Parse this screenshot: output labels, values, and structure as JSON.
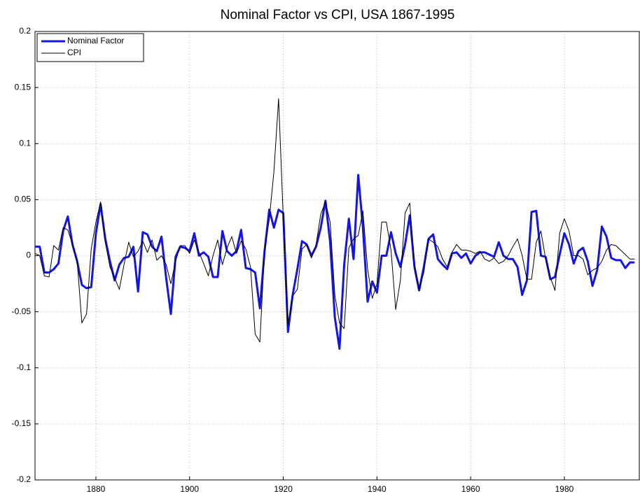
{
  "chart_data": {
    "type": "line",
    "title": "Nominal Factor vs CPI, USA 1867-1995",
    "x": [
      1867,
      1868,
      1869,
      1870,
      1871,
      1872,
      1873,
      1874,
      1875,
      1876,
      1877,
      1878,
      1879,
      1880,
      1881,
      1882,
      1883,
      1884,
      1885,
      1886,
      1887,
      1888,
      1889,
      1890,
      1891,
      1892,
      1893,
      1894,
      1895,
      1896,
      1897,
      1898,
      1899,
      1900,
      1901,
      1902,
      1903,
      1904,
      1905,
      1906,
      1907,
      1908,
      1909,
      1910,
      1911,
      1912,
      1913,
      1914,
      1915,
      1916,
      1917,
      1918,
      1919,
      1920,
      1921,
      1922,
      1923,
      1924,
      1925,
      1926,
      1927,
      1928,
      1929,
      1930,
      1931,
      1932,
      1933,
      1934,
      1935,
      1936,
      1937,
      1938,
      1939,
      1940,
      1941,
      1942,
      1943,
      1944,
      1945,
      1946,
      1947,
      1948,
      1949,
      1950,
      1951,
      1952,
      1953,
      1954,
      1955,
      1956,
      1957,
      1958,
      1959,
      1960,
      1961,
      1962,
      1963,
      1964,
      1965,
      1966,
      1967,
      1968,
      1969,
      1970,
      1971,
      1972,
      1973,
      1974,
      1975,
      1976,
      1977,
      1978,
      1979,
      1980,
      1981,
      1982,
      1983,
      1984,
      1985,
      1986,
      1987,
      1988,
      1989,
      1990,
      1991,
      1992,
      1993,
      1994,
      1995
    ],
    "series": [
      {
        "name": "Nominal Factor",
        "color": "#1414e6",
        "width": 3,
        "values": [
          0.008,
          0.008,
          -0.015,
          -0.015,
          -0.012,
          -0.007,
          0.022,
          0.035,
          0.01,
          -0.005,
          -0.026,
          -0.029,
          -0.028,
          0.02,
          0.046,
          0.015,
          -0.005,
          -0.022,
          -0.008,
          -0.002,
          -0.001,
          0.008,
          -0.032,
          0.021,
          0.019,
          0.008,
          0.004,
          0.017,
          -0.02,
          -0.052,
          -0.001,
          0.008,
          0.007,
          0.004,
          0.02,
          0.0,
          0.003,
          -0.001,
          -0.019,
          -0.019,
          0.022,
          0.004,
          0.0,
          0.004,
          0.023,
          -0.011,
          -0.012,
          -0.015,
          -0.047,
          0.004,
          0.041,
          0.025,
          0.041,
          0.038,
          -0.068,
          -0.035,
          -0.012,
          0.013,
          0.01,
          0.0,
          0.008,
          0.025,
          0.049,
          0.012,
          -0.055,
          -0.083,
          -0.008,
          0.033,
          -0.003,
          0.072,
          0.025,
          -0.041,
          -0.023,
          -0.033,
          0.0,
          0.0,
          0.021,
          0.002,
          -0.01,
          0.01,
          0.036,
          -0.01,
          -0.031,
          -0.01,
          0.015,
          0.019,
          -0.003,
          -0.008,
          -0.012,
          0.002,
          0.003,
          -0.002,
          0.002,
          -0.007,
          0.0,
          0.003,
          0.003,
          0.001,
          -0.001,
          0.012,
          0.0,
          -0.003,
          -0.003,
          -0.01,
          -0.035,
          -0.022,
          0.039,
          0.04,
          0.0,
          -0.001,
          -0.021,
          -0.019,
          0.001,
          0.02,
          0.01,
          -0.007,
          0.004,
          0.007,
          -0.005,
          -0.027,
          -0.013,
          0.026,
          0.017,
          -0.002,
          -0.004,
          -0.004,
          -0.011,
          -0.006,
          -0.006
        ]
      },
      {
        "name": "CPI",
        "color": "#000000",
        "width": 1,
        "values": [
          0.002,
          0.0,
          -0.018,
          -0.019,
          0.009,
          0.005,
          0.025,
          0.023,
          0.01,
          -0.005,
          -0.06,
          -0.052,
          0.006,
          0.03,
          0.048,
          0.012,
          -0.01,
          -0.02,
          -0.03,
          -0.008,
          0.012,
          -0.001,
          0.004,
          0.013,
          0.003,
          0.014,
          -0.004,
          0.0,
          -0.008,
          -0.025,
          -0.005,
          0.009,
          0.009,
          0.002,
          0.014,
          0.003,
          -0.007,
          -0.018,
          0.0,
          0.014,
          -0.008,
          0.007,
          0.017,
          0.002,
          0.013,
          0.006,
          -0.01,
          -0.07,
          -0.077,
          0.005,
          0.032,
          0.075,
          0.14,
          0.033,
          -0.063,
          -0.036,
          -0.03,
          0.006,
          0.01,
          -0.002,
          0.01,
          0.037,
          0.048,
          0.03,
          -0.035,
          -0.06,
          -0.065,
          0.007,
          0.015,
          0.018,
          0.04,
          -0.012,
          -0.038,
          -0.025,
          0.03,
          0.03,
          0.005,
          -0.048,
          -0.022,
          0.038,
          0.047,
          -0.008,
          -0.03,
          -0.015,
          0.015,
          0.012,
          0.008,
          -0.003,
          -0.01,
          0.003,
          0.01,
          0.005,
          0.005,
          0.004,
          0.002,
          0.004,
          -0.003,
          -0.005,
          -0.002,
          -0.007,
          -0.005,
          0.0,
          0.008,
          0.015,
          0.0,
          -0.021,
          -0.021,
          0.012,
          0.022,
          -0.003,
          -0.019,
          -0.031,
          0.02,
          0.033,
          0.022,
          0.0,
          0.0,
          -0.003,
          -0.017,
          -0.013,
          -0.011,
          -0.005,
          0.005,
          0.01,
          0.009,
          0.005,
          0.001,
          -0.003,
          -0.003
        ]
      }
    ],
    "xlim": [
      1867,
      1996
    ],
    "xticks": [
      1880,
      1900,
      1920,
      1940,
      1960,
      1980
    ],
    "ylim": [
      -0.2,
      0.2
    ],
    "yticks": [
      -0.2,
      -0.15,
      -0.1,
      -0.05,
      0,
      0.05,
      0.1,
      0.15,
      0.2
    ],
    "grid": true,
    "legend": "upper-left"
  }
}
